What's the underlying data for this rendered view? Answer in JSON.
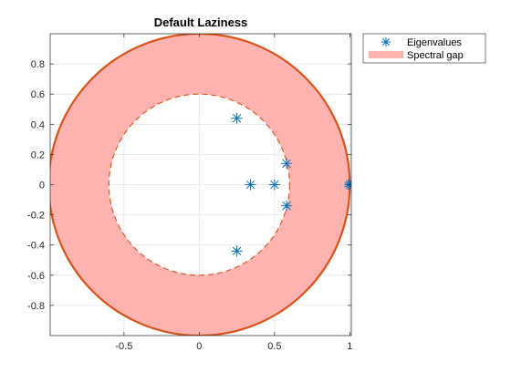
{
  "chart_data": {
    "type": "scatter",
    "title": "Default Laziness",
    "xlabel": "",
    "ylabel": "",
    "xlim": [
      -0.99,
      1.01
    ],
    "ylim": [
      -1.0,
      1.0
    ],
    "xticks": [
      -0.5,
      0,
      0.5,
      1
    ],
    "xtick_labels": [
      "-0.5",
      "0",
      "0.5",
      "1"
    ],
    "yticks": [
      0.8,
      0.6,
      0.4,
      0.2,
      0,
      -0.2,
      -0.4,
      -0.6,
      -0.8
    ],
    "ytick_labels": [
      "0.8",
      "0.6",
      "0.4",
      "0.2",
      "0",
      "-0.2",
      "-0.4",
      "-0.6",
      "-0.8"
    ],
    "grid": true,
    "legend_position": "outside-top-right",
    "spectral_gap": {
      "outer_radius": 1.0,
      "inner_radius": 0.6
    },
    "series": [
      {
        "name": "Eigenvalues",
        "marker": "asterisk",
        "color": "#0072BD",
        "points": [
          {
            "x": 1.0,
            "y": 0.0
          },
          {
            "x": 1.0,
            "y": 0.0
          },
          {
            "x": 0.25,
            "y": 0.44
          },
          {
            "x": 0.25,
            "y": -0.44
          },
          {
            "x": 0.58,
            "y": 0.14
          },
          {
            "x": 0.58,
            "y": -0.14
          },
          {
            "x": 0.34,
            "y": 0.0
          },
          {
            "x": 0.5,
            "y": 0.0
          }
        ]
      },
      {
        "name": "Spectral gap",
        "fill_color": "#FFB3B0",
        "edge_color": "#D95319"
      }
    ]
  }
}
